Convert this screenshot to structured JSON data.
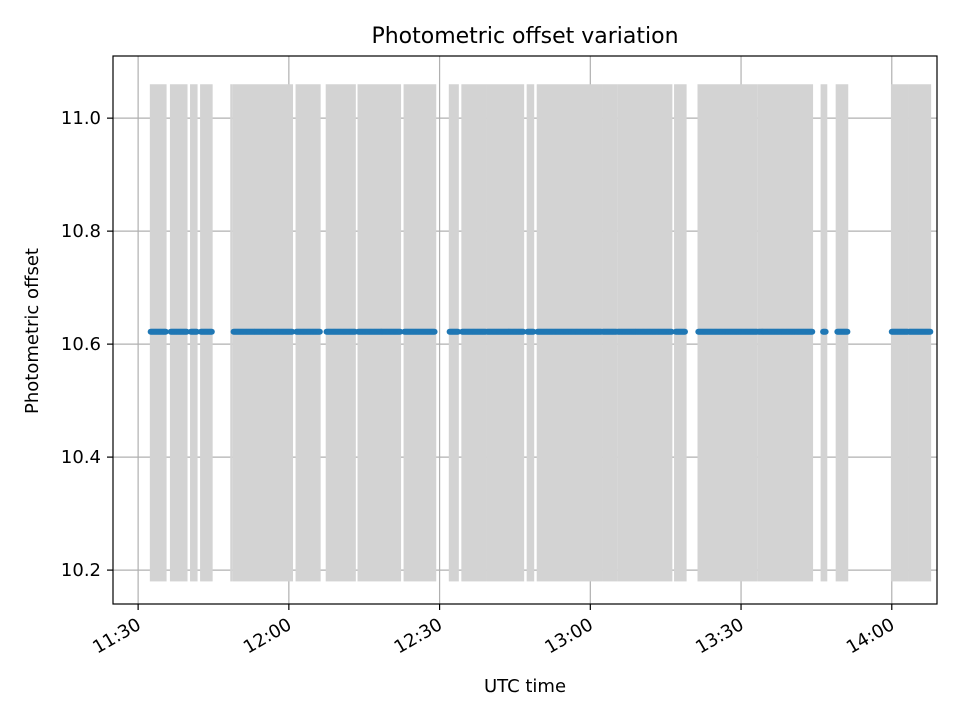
{
  "chart_data": {
    "type": "scatter",
    "title": "Photometric offset variation",
    "xlabel": "UTC time",
    "ylabel": "Photometric offset",
    "xlim": [
      "11:25",
      "14:09"
    ],
    "ylim": [
      10.14,
      11.11
    ],
    "xticks": [
      "11:30",
      "12:00",
      "12:30",
      "13:00",
      "13:30",
      "14:00"
    ],
    "yticks": [
      10.2,
      10.4,
      10.6,
      10.8,
      11.0
    ],
    "grid": true,
    "colors": {
      "points": "#1f77b4",
      "bands": "#d3d3d3",
      "grid": "#b0b0b0"
    },
    "bands": {
      "ymin": 10.18,
      "ymax": 11.06,
      "intervals": [
        [
          "11:32:20",
          "11:35:40"
        ],
        [
          "11:36:20",
          "11:39:50"
        ],
        [
          "11:40:20",
          "11:41:50"
        ],
        [
          "11:42:20",
          "11:44:50"
        ],
        [
          "11:48:20",
          "11:48:50"
        ],
        [
          "11:48:50",
          "12:00:50"
        ],
        [
          "12:01:20",
          "12:06:20"
        ],
        [
          "12:07:20",
          "12:13:20"
        ],
        [
          "12:13:40",
          "12:22:20"
        ],
        [
          "12:22:50",
          "12:29:20"
        ],
        [
          "12:31:50",
          "12:33:50"
        ],
        [
          "12:34:20",
          "12:39:20"
        ],
        [
          "12:39:20",
          "12:46:50"
        ],
        [
          "12:47:20",
          "12:48:50"
        ],
        [
          "12:49:20",
          "13:02:20"
        ],
        [
          "13:02:20",
          "13:05:20"
        ],
        [
          "13:05:20",
          "13:16:20"
        ],
        [
          "13:16:40",
          "13:19:10"
        ],
        [
          "13:21:20",
          "13:33:20"
        ],
        [
          "13:33:20",
          "13:44:20"
        ],
        [
          "13:45:50",
          "13:47:10"
        ],
        [
          "13:48:50",
          "13:51:20"
        ],
        [
          "13:59:50",
          "14:03:20"
        ],
        [
          "14:03:20",
          "14:07:50"
        ]
      ]
    },
    "series": [
      {
        "y": 10.622,
        "point_runs": [
          [
            "11:32:30",
            "11:35:30"
          ],
          [
            "11:36:30",
            "11:39:40"
          ],
          [
            "11:40:30",
            "11:41:40"
          ],
          [
            "11:42:30",
            "11:44:40"
          ],
          [
            "11:49:00",
            "12:00:40"
          ],
          [
            "12:01:30",
            "12:06:10"
          ],
          [
            "12:07:30",
            "12:13:10"
          ],
          [
            "12:13:50",
            "12:22:10"
          ],
          [
            "12:23:00",
            "12:29:00"
          ],
          [
            "12:32:00",
            "12:33:40"
          ],
          [
            "12:34:30",
            "12:39:10"
          ],
          [
            "12:39:30",
            "12:46:40"
          ],
          [
            "12:47:30",
            "12:48:40"
          ],
          [
            "12:49:30",
            "13:02:10"
          ],
          [
            "13:02:30",
            "13:05:10"
          ],
          [
            "13:05:30",
            "13:16:10"
          ],
          [
            "13:17:00",
            "13:18:50"
          ],
          [
            "13:21:30",
            "13:33:10"
          ],
          [
            "13:33:30",
            "13:44:10"
          ],
          [
            "13:46:20",
            "13:46:50"
          ],
          [
            "13:49:10",
            "13:51:10"
          ],
          [
            "14:00:00",
            "14:03:10"
          ],
          [
            "14:03:30",
            "14:07:40"
          ]
        ]
      }
    ]
  }
}
